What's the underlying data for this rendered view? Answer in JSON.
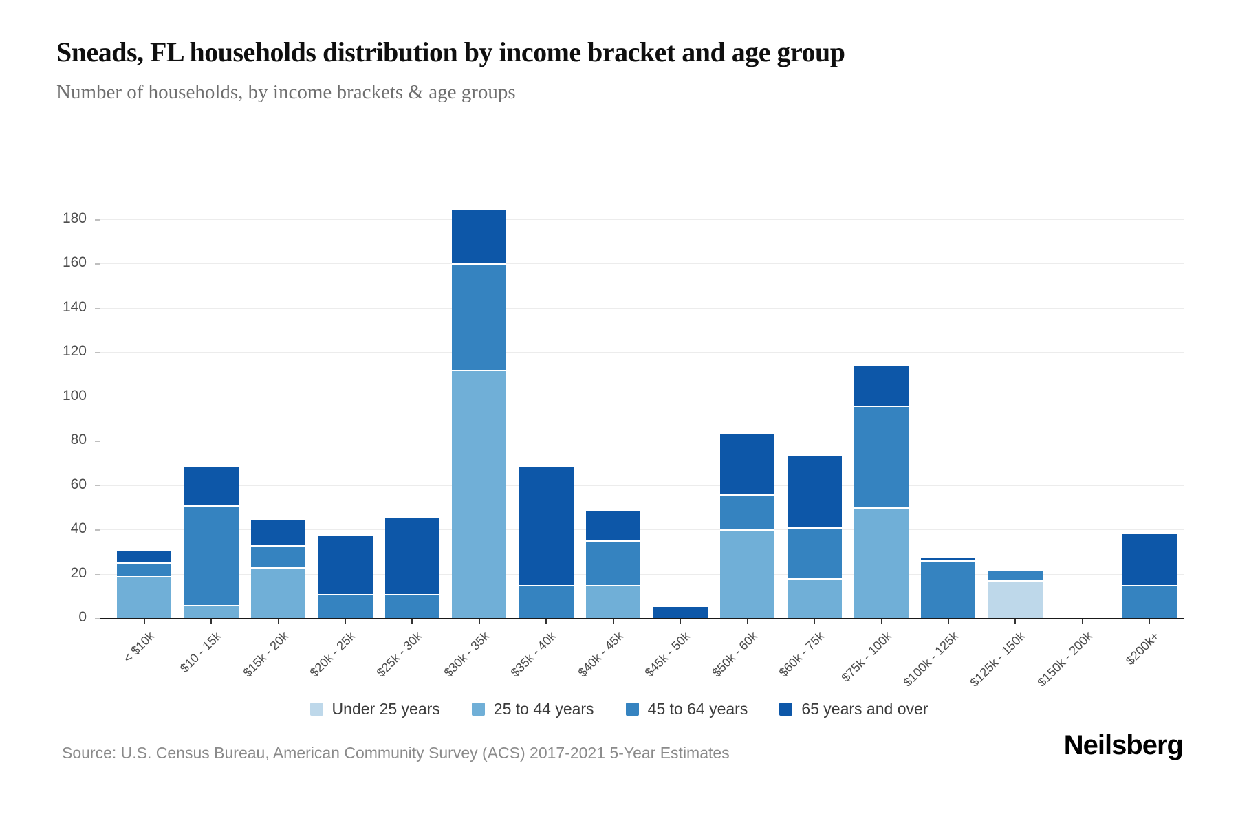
{
  "title": "Sneads, FL households distribution by income bracket and age group",
  "subtitle": "Number of households, by income brackets & age groups",
  "source": "Source: U.S. Census Bureau, American Community Survey (ACS) 2017-2021 5-Year Estimates",
  "logo": "Neilsberg",
  "chart_data": {
    "type": "bar",
    "stacked": true,
    "title": "Sneads, FL households distribution by income bracket and age group",
    "xlabel": "",
    "ylabel": "Number of households",
    "ylim": [
      0,
      195
    ],
    "yticks": [
      0,
      20,
      40,
      60,
      80,
      100,
      120,
      140,
      160,
      180
    ],
    "grid": true,
    "legend_position": "bottom",
    "categories": [
      "< $10k",
      "$10 - 15k",
      "$15k - 20k",
      "$20k - 25k",
      "$25k - 30k",
      "$30k - 35k",
      "$35k - 40k",
      "$40k - 45k",
      "$45k - 50k",
      "$50k - 60k",
      "$60k - 75k",
      "$75k - 100k",
      "$100k - 125k",
      "$125k - 150k",
      "$150k - 200k",
      "$200k+"
    ],
    "series": [
      {
        "name": "Under 25 years",
        "color": "#bed8ea",
        "values": [
          0,
          0,
          0,
          0,
          0,
          0,
          0,
          0,
          0,
          0,
          0,
          0,
          0,
          17,
          0,
          0
        ]
      },
      {
        "name": "25 to 44 years",
        "color": "#70afd7",
        "values": [
          19,
          6,
          23,
          0,
          0,
          112,
          0,
          15,
          0,
          40,
          18,
          50,
          0,
          0,
          0,
          0
        ]
      },
      {
        "name": "45 to 64 years",
        "color": "#3583c0",
        "values": [
          6,
          45,
          10,
          11,
          11,
          48,
          15,
          20,
          0,
          16,
          23,
          46,
          26,
          4,
          0,
          15
        ]
      },
      {
        "name": "65 years and over",
        "color": "#0d57a8",
        "values": [
          5,
          17,
          11,
          26,
          34,
          24,
          53,
          13,
          5,
          27,
          32,
          18,
          1,
          0,
          0,
          23
        ]
      }
    ],
    "totals": [
      30,
      68,
      44,
      37,
      45,
      184,
      68,
      48,
      5,
      83,
      73,
      114,
      27,
      21,
      0,
      38
    ]
  }
}
